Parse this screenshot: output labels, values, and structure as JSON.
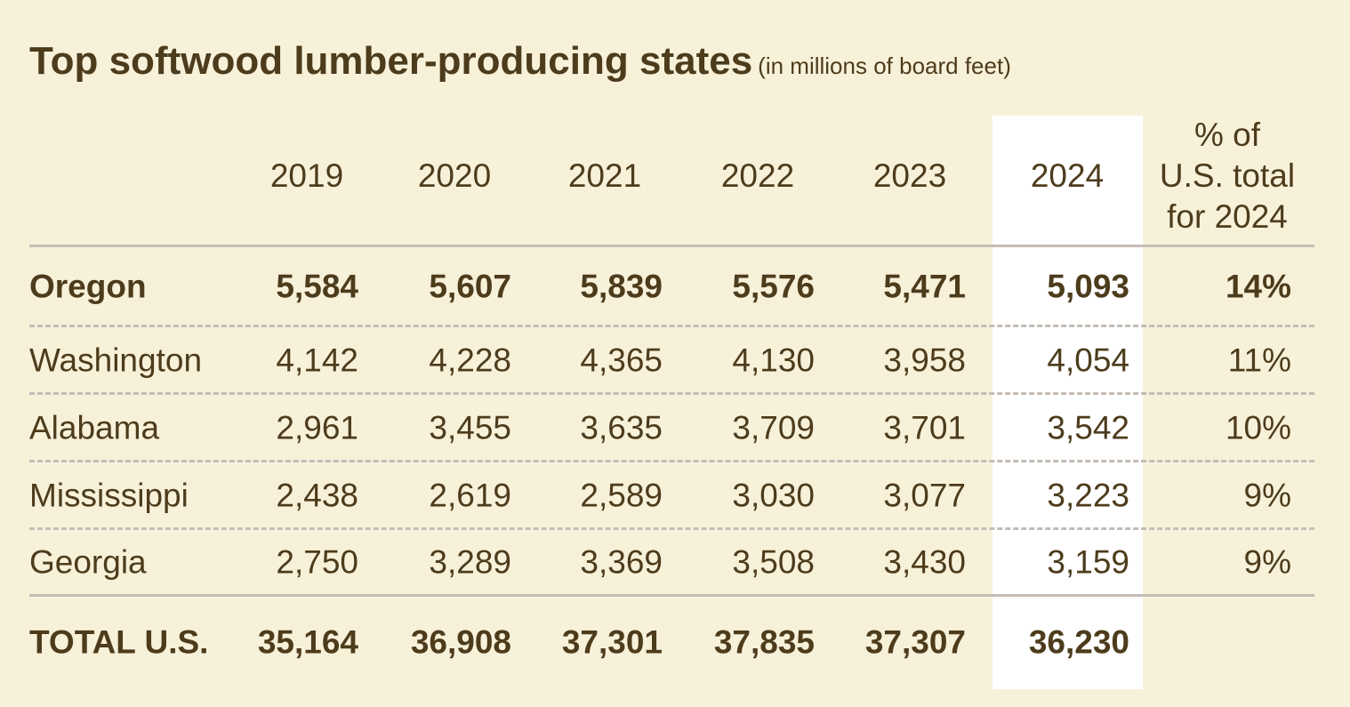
{
  "title": "Top softwood lumber-producing states",
  "subtitle": "(in millions of board feet)",
  "table": {
    "header": [
      "2019",
      "2020",
      "2021",
      "2022",
      "2023",
      "2024",
      [
        "% of",
        "U.S. total",
        "for 2024"
      ]
    ],
    "rows": [
      [
        "Oregon",
        "5,584",
        "5,607",
        "5,839",
        "5,576",
        "5,471",
        "5,093",
        "14%"
      ],
      [
        "Washington",
        "4,142",
        "4,228",
        "4,365",
        "4,130",
        "3,958",
        "4,054",
        "11%"
      ],
      [
        "Alabama",
        "2,961",
        "3,455",
        "3,635",
        "3,709",
        "3,701",
        "3,542",
        "10%"
      ],
      [
        "Mississippi",
        "2,438",
        "2,619",
        "2,589",
        "3,030",
        "3,077",
        "3,223",
        "9%"
      ],
      [
        "Georgia",
        "2,750",
        "3,289",
        "3,369",
        "3,508",
        "3,430",
        "3,159",
        "9%"
      ]
    ],
    "total": [
      "TOTAL U.S.",
      "35,164",
      "36,908",
      "37,301",
      "37,835",
      "37,307",
      "36,230"
    ]
  }
}
